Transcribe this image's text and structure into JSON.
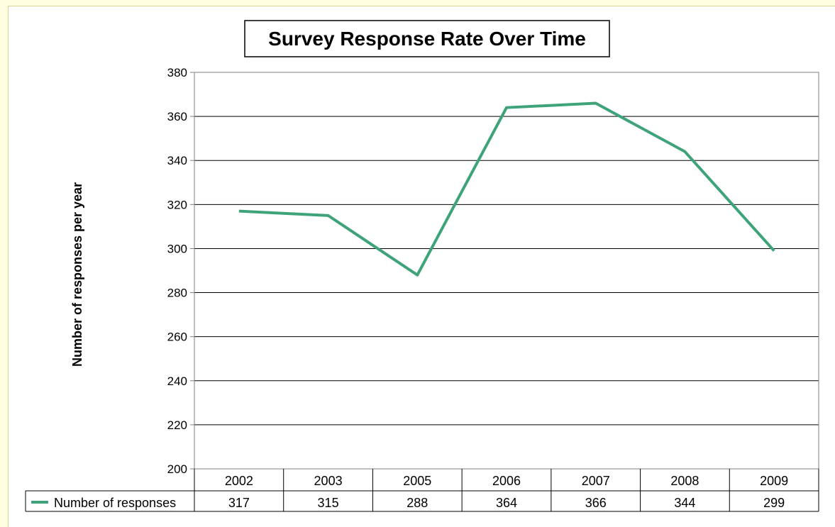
{
  "chart_data": {
    "type": "line",
    "title": "Survey Response Rate Over Time",
    "xlabel": "",
    "ylabel": "Number of responses per year",
    "categories": [
      "2002",
      "2003",
      "2005",
      "2006",
      "2007",
      "2008",
      "2009"
    ],
    "series": [
      {
        "name": "Number of responses",
        "values": [
          317,
          315,
          288,
          364,
          366,
          344,
          299
        ],
        "color": "#3fa37a"
      }
    ],
    "ylim": [
      200,
      380
    ],
    "yticks": [
      "200",
      "220",
      "240",
      "260",
      "280",
      "300",
      "320",
      "340",
      "360",
      "380"
    ],
    "grid": true,
    "data_table": true,
    "legend": "data-table"
  }
}
